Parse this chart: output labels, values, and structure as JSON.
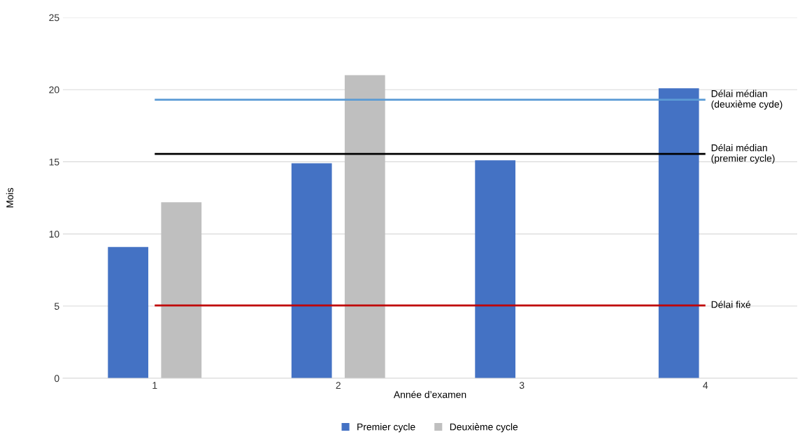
{
  "chart_data": {
    "type": "bar",
    "xlabel": "Année d’examen",
    "ylabel": "Mois",
    "categories": [
      "1",
      "2",
      "3",
      "4"
    ],
    "series": [
      {
        "name": "Premier cycle",
        "color": "#4472c4",
        "values": [
          9.1,
          14.9,
          15.1,
          20.1
        ]
      },
      {
        "name": "Deuxième cycle",
        "color": "#bfbfbf",
        "values": [
          12.2,
          21.0,
          null,
          null
        ]
      }
    ],
    "ylim": [
      0,
      25
    ],
    "yticks": [
      0,
      5,
      10,
      15,
      20,
      25
    ],
    "grid": "y",
    "legend": "bottom",
    "ref_lines": [
      {
        "axis": "y",
        "value": 19.3,
        "label": "Délai médian\n(deuxième cyde)",
        "color": "#5b9bd5"
      },
      {
        "axis": "y",
        "value": 15.55,
        "label": "Délai médian\n(premier cycle)",
        "color": "#000000"
      },
      {
        "axis": "y",
        "value": 5.05,
        "label": "Délai fixé",
        "color": "#c00000"
      }
    ]
  }
}
